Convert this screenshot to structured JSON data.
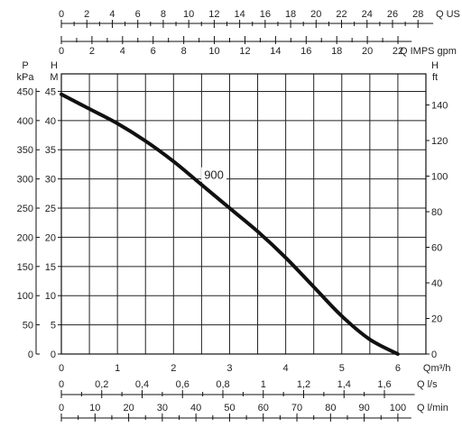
{
  "chart_data": {
    "type": "line",
    "series": [
      {
        "name": "900",
        "x": [
          0,
          0.5,
          1,
          1.5,
          2,
          2.5,
          3,
          3.5,
          4,
          4.5,
          5,
          5.5,
          6
        ],
        "y": [
          44.5,
          42,
          39.5,
          36.5,
          33,
          29,
          25,
          21,
          16.5,
          11.5,
          6.5,
          2.5,
          0
        ]
      }
    ],
    "x_axis": {
      "label": "Qm³/h",
      "ticks": [
        "0",
        "1",
        "2",
        "3",
        "4",
        "5",
        "6"
      ],
      "range": [
        0,
        6.5
      ]
    },
    "y_left_m": {
      "label_top": "H",
      "label_unit": "M",
      "ticks": [
        "0",
        "5",
        "10",
        "15",
        "20",
        "25",
        "30",
        "35",
        "40",
        "45"
      ],
      "range": [
        0,
        48
      ]
    },
    "y_left_kpa": {
      "label_top": "P",
      "label_unit": "kPa",
      "ticks": [
        "0",
        "50",
        "100",
        "150",
        "200",
        "250",
        "300",
        "350",
        "400",
        "450"
      ]
    },
    "y_right_ft": {
      "label_top": "H",
      "label_unit": "ft",
      "ticks": [
        "0",
        "20",
        "40",
        "60",
        "80",
        "100",
        "120",
        "140"
      ]
    },
    "top_axis_us": {
      "label": "Q US gpm",
      "ticks": [
        "0",
        "2",
        "4",
        "6",
        "8",
        "10",
        "12",
        "14",
        "16",
        "18",
        "20",
        "22",
        "24",
        "26",
        "28"
      ]
    },
    "top_axis_imps": {
      "label": "Q IMPS gpm",
      "ticks": [
        "0",
        "2",
        "4",
        "6",
        "8",
        "10",
        "12",
        "14",
        "16",
        "18",
        "20",
        "22"
      ]
    },
    "bottom_axis_ls": {
      "label": "Q l/s",
      "ticks": [
        "0",
        "0,2",
        "0,4",
        "0,6",
        "0,8",
        "1",
        "1,2",
        "1,4",
        "1,6"
      ]
    },
    "bottom_axis_lmin": {
      "label": "Q l/min",
      "ticks": [
        "0",
        "10",
        "20",
        "30",
        "40",
        "50",
        "60",
        "70",
        "80",
        "90",
        "100"
      ]
    },
    "grid": true,
    "colors": {
      "curve": "#111111",
      "grid": "#222222"
    }
  }
}
